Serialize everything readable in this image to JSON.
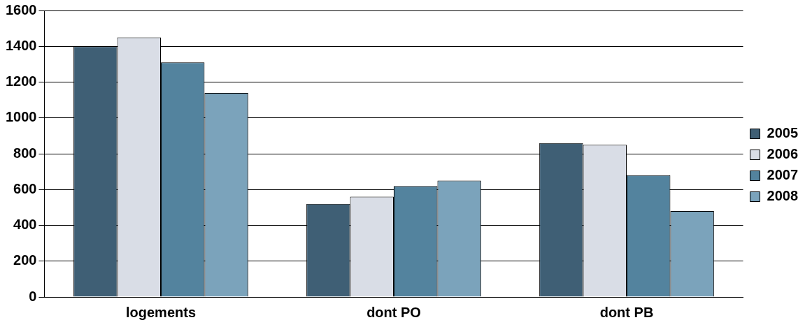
{
  "chart_data": {
    "type": "bar",
    "categories": [
      "logements",
      "dont PO",
      "dont PB"
    ],
    "series": [
      {
        "name": "2005",
        "color": "#3f5f75",
        "values": [
          1400,
          520,
          860
        ]
      },
      {
        "name": "2006",
        "color": "#d9dde6",
        "values": [
          1450,
          560,
          850
        ]
      },
      {
        "name": "2007",
        "color": "#53839e",
        "values": [
          1310,
          620,
          680
        ]
      },
      {
        "name": "2008",
        "color": "#7ba3bb",
        "values": [
          1140,
          650,
          480
        ]
      }
    ],
    "ylim": [
      0,
      1600
    ],
    "yticks": [
      0,
      200,
      400,
      600,
      800,
      1000,
      1200,
      1400,
      1600
    ],
    "grid": "y",
    "legend": "right"
  }
}
